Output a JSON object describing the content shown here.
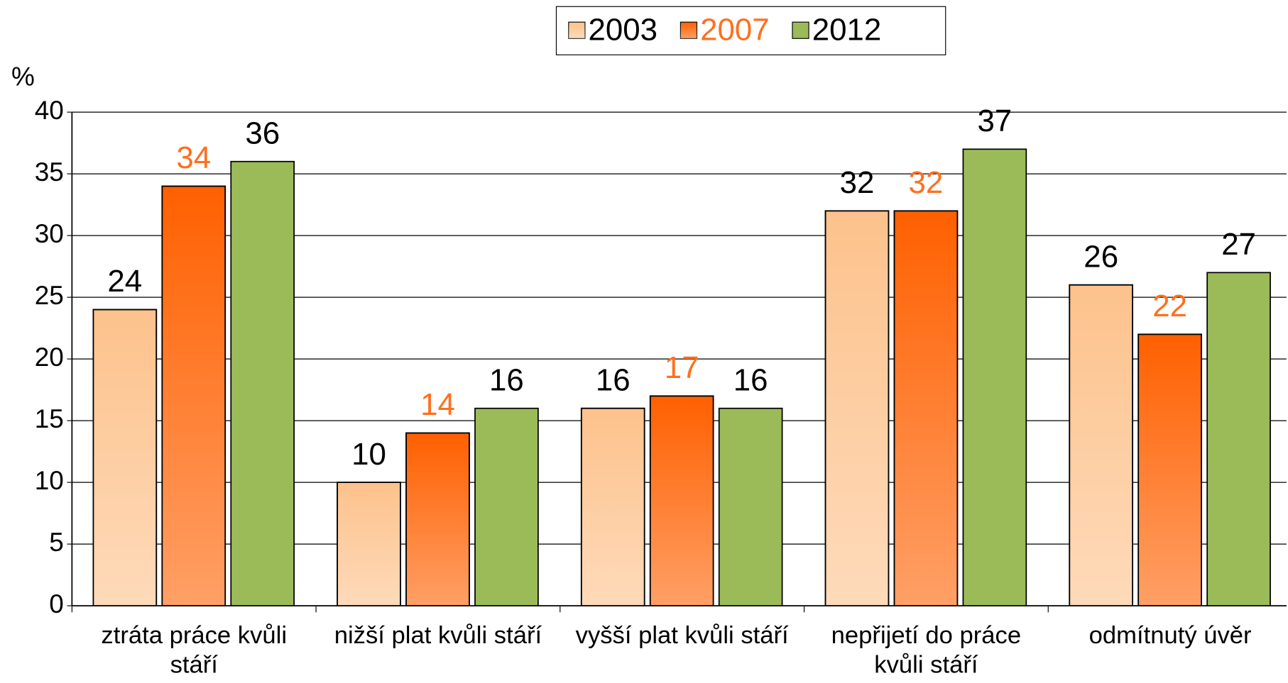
{
  "chart_data": {
    "type": "bar",
    "y_label": "%",
    "categories": [
      "ztráta práce kvůli stáří",
      "nižší plat kvůli stáří",
      "vyšší plat kvůli stáří",
      "nepřijetí do práce kvůli stáří",
      "odmítnutý úvěr"
    ],
    "series": [
      {
        "name": "2003",
        "color": "#fdc28c",
        "label_color": "#000000",
        "gradient": true,
        "values": [
          24,
          10,
          16,
          32,
          26
        ]
      },
      {
        "name": "2007",
        "color": "#ff6000",
        "label_color": "#ff6f1f",
        "gradient": true,
        "values": [
          34,
          14,
          17,
          32,
          22
        ]
      },
      {
        "name": "2012",
        "color": "#9bbb59",
        "label_color": "#000000",
        "values": [
          36,
          16,
          16,
          37,
          27
        ]
      }
    ],
    "ylim": [
      0,
      40
    ],
    "yticks": [
      0,
      5,
      10,
      15,
      20,
      25,
      30,
      35,
      40
    ],
    "grid": true,
    "legend": "top"
  }
}
